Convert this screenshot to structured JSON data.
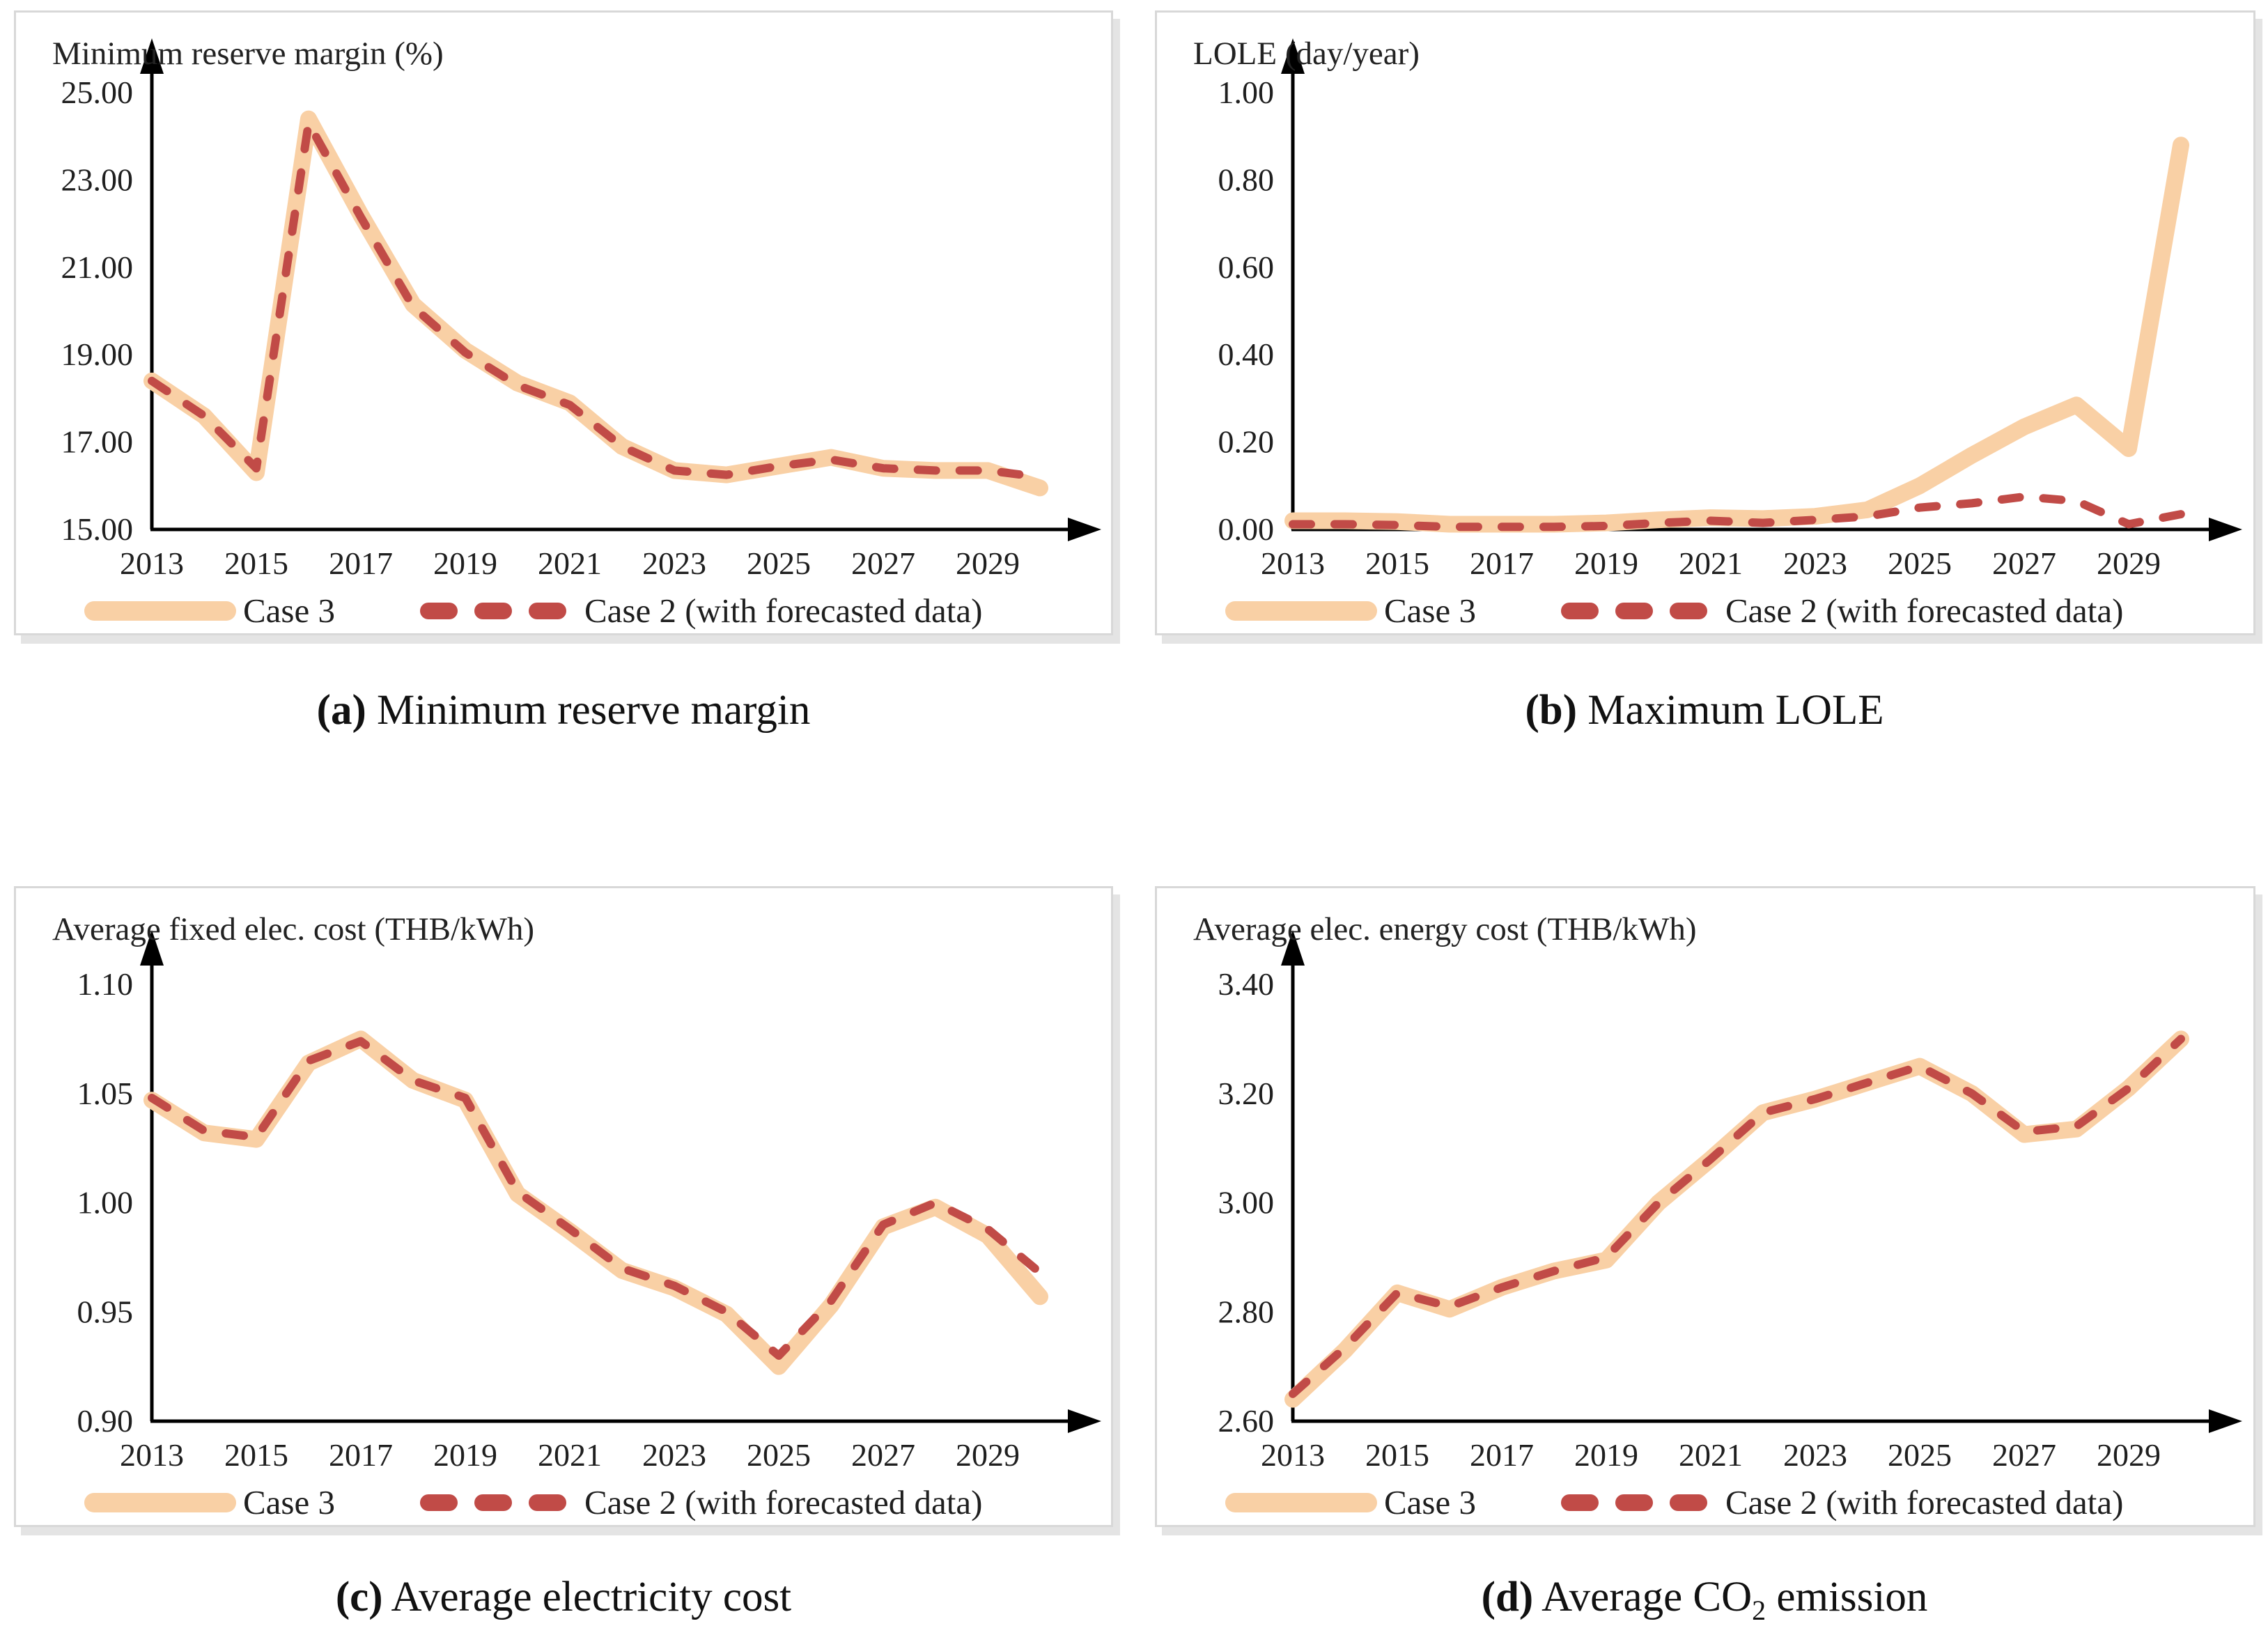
{
  "colors": {
    "case3": "#F9D0A5",
    "case2": "#C14B47",
    "axis": "#000000",
    "panel_border": "#D8D8D8",
    "panel_shadow": "#E4E4E4",
    "text": "#1F1F1F"
  },
  "captions": [
    {
      "label": "(a)",
      "text": "Minimum reserve margin"
    },
    {
      "label": "(b)",
      "text": "Maximum LOLE"
    },
    {
      "label": "(c)",
      "text": "Average electricity cost"
    },
    {
      "label": "(d)",
      "pre": "Average CO",
      "sub": "2",
      "post": " emission"
    }
  ],
  "chart_data": [
    {
      "type": "line",
      "title": "Minimum reserve margin (%)",
      "xlabel": "",
      "ylabel": "Minimum reserve margin (%)",
      "x": [
        2013,
        2014,
        2015,
        2016,
        2017,
        2018,
        2019,
        2020,
        2021,
        2022,
        2023,
        2024,
        2025,
        2026,
        2027,
        2028,
        2029,
        2030
      ],
      "xticks": [
        2013,
        2015,
        2017,
        2019,
        2021,
        2023,
        2025,
        2027,
        2029
      ],
      "ylim": [
        15.0,
        25.0
      ],
      "yticks": [
        15.0,
        17.0,
        19.0,
        21.0,
        23.0,
        25.0
      ],
      "grid": false,
      "legend_position": "bottom",
      "legend": [
        "Case 3",
        "Case 2 (with forecasted data)"
      ],
      "series": [
        {
          "name": "Case 3",
          "color_key": "case3",
          "values": [
            18.4,
            17.6,
            16.3,
            24.4,
            22.2,
            20.15,
            19.1,
            18.35,
            17.9,
            16.9,
            16.35,
            16.25,
            16.45,
            16.65,
            16.4,
            16.35,
            16.35,
            15.95
          ]
        },
        {
          "name": "Case 2 (with forecasted data)",
          "color_key": "case2",
          "values": [
            18.4,
            17.6,
            16.4,
            24.3,
            22.15,
            20.1,
            19.05,
            18.3,
            17.85,
            16.9,
            16.35,
            16.25,
            16.45,
            16.6,
            16.4,
            16.35,
            16.35,
            16.2
          ]
        }
      ]
    },
    {
      "type": "line",
      "title": "LOLE (day/year)",
      "xlabel": "",
      "ylabel": "LOLE (day/year)",
      "x": [
        2013,
        2014,
        2015,
        2016,
        2017,
        2018,
        2019,
        2020,
        2021,
        2022,
        2023,
        2024,
        2025,
        2026,
        2027,
        2028,
        2029,
        2030
      ],
      "xticks": [
        2013,
        2015,
        2017,
        2019,
        2021,
        2023,
        2025,
        2027,
        2029
      ],
      "ylim": [
        0.0,
        1.0
      ],
      "yticks": [
        0.0,
        0.2,
        0.4,
        0.6,
        0.8,
        1.0
      ],
      "grid": false,
      "legend_position": "bottom",
      "legend": [
        "Case 3",
        "Case 2 (with forecasted data)"
      ],
      "series": [
        {
          "name": "Case 3",
          "color_key": "case3",
          "values": [
            0.02,
            0.02,
            0.018,
            0.012,
            0.012,
            0.012,
            0.015,
            0.022,
            0.027,
            0.025,
            0.03,
            0.045,
            0.1,
            0.17,
            0.235,
            0.285,
            0.185,
            0.88
          ]
        },
        {
          "name": "Case 2 (with forecasted data)",
          "color_key": "case2",
          "values": [
            0.012,
            0.012,
            0.01,
            0.006,
            0.006,
            0.006,
            0.008,
            0.015,
            0.02,
            0.015,
            0.022,
            0.03,
            0.05,
            0.06,
            0.075,
            0.065,
            0.012,
            0.035
          ]
        }
      ]
    },
    {
      "type": "line",
      "title": "Average fixed elec. cost (THB/kWh)",
      "xlabel": "",
      "ylabel": "Average fixed elec. cost (THB/kWh)",
      "x": [
        2013,
        2014,
        2015,
        2016,
        2017,
        2018,
        2019,
        2020,
        2021,
        2022,
        2023,
        2024,
        2025,
        2026,
        2027,
        2028,
        2029,
        2030
      ],
      "xticks": [
        2013,
        2015,
        2017,
        2019,
        2021,
        2023,
        2025,
        2027,
        2029
      ],
      "ylim": [
        0.9,
        1.1
      ],
      "yticks": [
        0.9,
        0.95,
        1.0,
        1.05,
        1.1
      ],
      "grid": false,
      "legend_position": "bottom",
      "legend": [
        "Case 3",
        "Case 2 (with forecasted data)"
      ],
      "series": [
        {
          "name": "Case 3",
          "color_key": "case3",
          "values": [
            1.047,
            1.032,
            1.029,
            1.064,
            1.075,
            1.056,
            1.047,
            1.004,
            0.987,
            0.969,
            0.961,
            0.949,
            0.925,
            0.953,
            0.989,
            0.998,
            0.985,
            0.957
          ]
        },
        {
          "name": "Case 2 (with forecasted data)",
          "color_key": "case2",
          "values": [
            1.048,
            1.033,
            1.03,
            1.065,
            1.074,
            1.056,
            1.048,
            1.005,
            0.988,
            0.97,
            0.962,
            0.95,
            0.93,
            0.955,
            0.99,
            1.0,
            0.988,
            0.968
          ]
        }
      ]
    },
    {
      "type": "line",
      "title": "Average elec. energy cost (THB/kWh)",
      "xlabel": "",
      "ylabel": "Average elec. energy cost (THB/kWh)",
      "x": [
        2013,
        2014,
        2015,
        2016,
        2017,
        2018,
        2019,
        2020,
        2021,
        2022,
        2023,
        2024,
        2025,
        2026,
        2027,
        2028,
        2029,
        2030
      ],
      "xticks": [
        2013,
        2015,
        2017,
        2019,
        2021,
        2023,
        2025,
        2027,
        2029
      ],
      "ylim": [
        2.6,
        3.4
      ],
      "yticks": [
        2.6,
        2.8,
        3.0,
        3.2,
        3.4
      ],
      "grid": false,
      "legend_position": "bottom",
      "legend": [
        "Case 3",
        "Case 2 (with forecasted data)"
      ],
      "series": [
        {
          "name": "Case 3",
          "color_key": "case3",
          "values": [
            2.64,
            2.73,
            2.835,
            2.805,
            2.845,
            2.875,
            2.895,
            3.0,
            3.08,
            3.165,
            3.19,
            3.22,
            3.25,
            3.2,
            3.125,
            3.135,
            3.21,
            3.3
          ]
        },
        {
          "name": "Case 2 (with forecasted data)",
          "color_key": "case2",
          "values": [
            2.65,
            2.735,
            2.835,
            2.81,
            2.845,
            2.875,
            2.9,
            3.0,
            3.08,
            3.165,
            3.19,
            3.22,
            3.25,
            3.2,
            3.13,
            3.14,
            3.21,
            3.3
          ]
        }
      ]
    }
  ]
}
